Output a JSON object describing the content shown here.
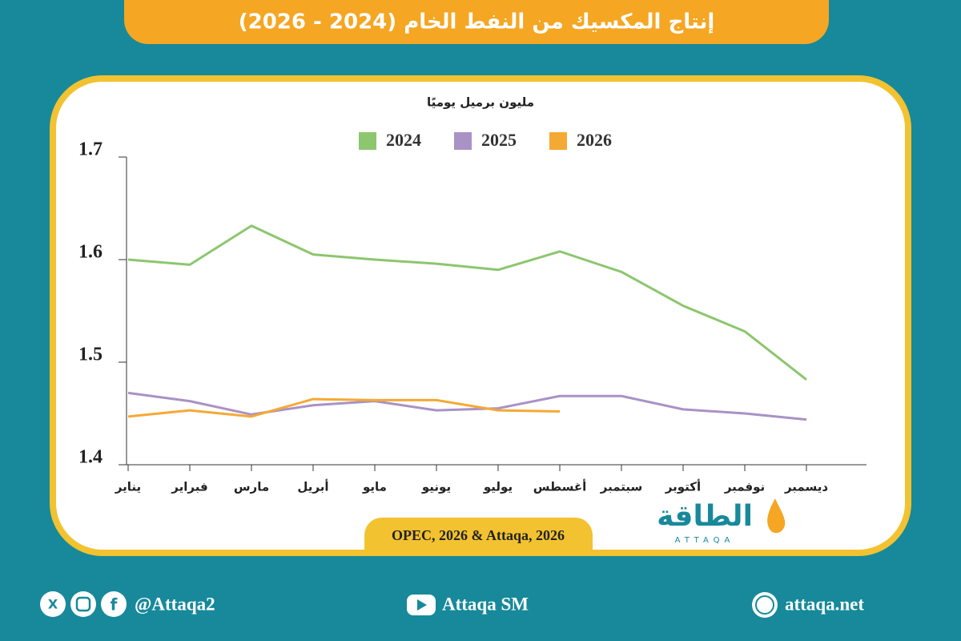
{
  "chart_data": {
    "type": "line",
    "title": "إنتاج المكسيك من النفط الخام (2024 - 2026)",
    "y_label": "مليون برميل يوميًا",
    "categories": [
      "يناير",
      "فبراير",
      "مارس",
      "أبريل",
      "مايو",
      "يونيو",
      "يوليو",
      "أغسطس",
      "سبتمبر",
      "أكتوبر",
      "نوفمبر",
      "ديسمبر"
    ],
    "series": [
      {
        "name": "2024",
        "color": "#8cc66e",
        "values": [
          1.6,
          1.595,
          1.633,
          1.605,
          1.6,
          1.596,
          1.59,
          1.608,
          1.588,
          1.555,
          1.53,
          1.483
        ]
      },
      {
        "name": "2025",
        "color": "#a992c6",
        "values": [
          1.47,
          1.462,
          1.449,
          1.458,
          1.462,
          1.453,
          1.455,
          1.467,
          1.467,
          1.454,
          1.45,
          1.444
        ]
      },
      {
        "name": "2026",
        "color": "#f5a935",
        "values": [
          1.447,
          1.453,
          1.447,
          1.464,
          1.463,
          1.463,
          1.453,
          1.452,
          null,
          null,
          null,
          null
        ]
      }
    ],
    "ylim": [
      1.4,
      1.7
    ],
    "yticks": [
      1.4,
      1.5,
      1.6,
      1.7
    ],
    "source": "OPEC, 2026 & Attaqa, 2026"
  },
  "brand": {
    "logo": "الطاقة",
    "logo_sub": "ATTAQA"
  },
  "footer": {
    "social": "@Attaqa2",
    "youtube": "Attaqa SM",
    "website": "attaqa.net"
  }
}
